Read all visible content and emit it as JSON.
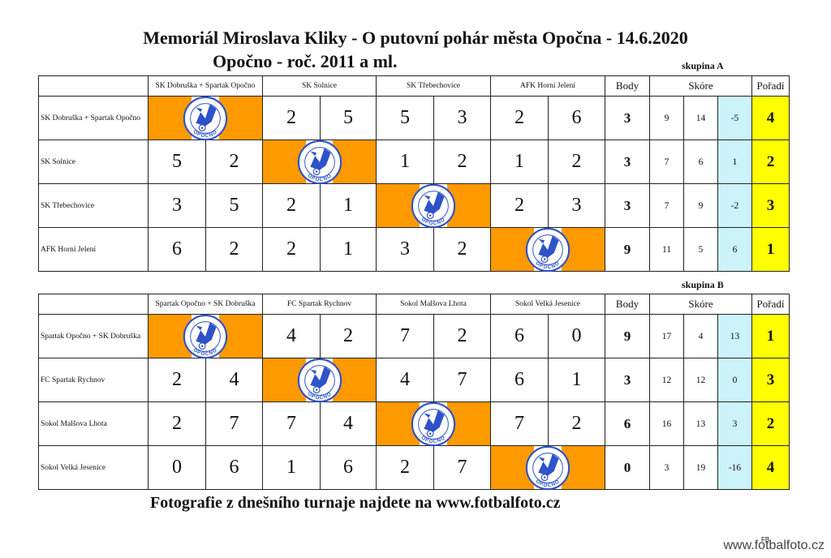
{
  "title": "Memoriál Miroslava Kliky - O putovní pohár města Opočna - 14.6.2020",
  "subtitle": "Opočno - roč. 2011 a ml.",
  "footer": "Fotografie z dnešního turnaje najdete na www.fotbalfoto.cz",
  "watermark": "www.fotbalfoto.cz",
  "tiny_mark": "FB",
  "logo": {
    "icon": "opocno-club-crest-icon",
    "text": "OPOČNO",
    "color": "#2e52c8"
  },
  "colors": {
    "self_cell": "#ff9900",
    "diff": "#ccf2fa",
    "rank": "#ffff00"
  },
  "headers": {
    "body": "Body",
    "skore": "Skóre",
    "poradi": "Pořadí"
  },
  "groups": [
    {
      "label": "skupina A",
      "teams": [
        "SK Dobruška + Spartak Opočno",
        "SK Solnice",
        "SK Třebechovice",
        "AFK Horní Jelení"
      ],
      "rows": [
        {
          "team": "SK Dobruška + Spartak Opočno",
          "results": [
            null,
            [
              "2",
              "5"
            ],
            [
              "5",
              "3"
            ],
            [
              "2",
              "6"
            ]
          ],
          "points": "3",
          "goals_for": "9",
          "goals_against": "14",
          "diff": "-5",
          "rank": "4"
        },
        {
          "team": "SK Solnice",
          "results": [
            [
              "5",
              "2"
            ],
            null,
            [
              "1",
              "2"
            ],
            [
              "1",
              "2"
            ]
          ],
          "points": "3",
          "goals_for": "7",
          "goals_against": "6",
          "diff": "1",
          "rank": "2"
        },
        {
          "team": "SK Třebechovice",
          "results": [
            [
              "3",
              "5"
            ],
            [
              "2",
              "1"
            ],
            null,
            [
              "2",
              "3"
            ]
          ],
          "points": "3",
          "goals_for": "7",
          "goals_against": "9",
          "diff": "-2",
          "rank": "3"
        },
        {
          "team": "AFK Horní Jelení",
          "results": [
            [
              "6",
              "2"
            ],
            [
              "2",
              "1"
            ],
            [
              "3",
              "2"
            ],
            null
          ],
          "points": "9",
          "goals_for": "11",
          "goals_against": "5",
          "diff": "6",
          "rank": "1"
        }
      ]
    },
    {
      "label": "skupina B",
      "teams": [
        "Spartak Opočno + SK Dobruška",
        "FC Spartak Rychnov",
        "Sokol Malšova Lhota",
        "Sokol Velká Jesenice"
      ],
      "rows": [
        {
          "team": "Spartak Opočno + SK Dobruška",
          "results": [
            null,
            [
              "4",
              "2"
            ],
            [
              "7",
              "2"
            ],
            [
              "6",
              "0"
            ]
          ],
          "points": "9",
          "goals_for": "17",
          "goals_against": "4",
          "diff": "13",
          "rank": "1"
        },
        {
          "team": "FC Spartak Rychnov",
          "results": [
            [
              "2",
              "4"
            ],
            null,
            [
              "4",
              "7"
            ],
            [
              "6",
              "1"
            ]
          ],
          "points": "3",
          "goals_for": "12",
          "goals_against": "12",
          "diff": "0",
          "rank": "3"
        },
        {
          "team": "Sokol Malšova Lhota",
          "results": [
            [
              "2",
              "7"
            ],
            [
              "7",
              "4"
            ],
            null,
            [
              "7",
              "2"
            ]
          ],
          "points": "6",
          "goals_for": "16",
          "goals_against": "13",
          "diff": "3",
          "rank": "2"
        },
        {
          "team": "Sokol Velká Jesenice",
          "results": [
            [
              "0",
              "6"
            ],
            [
              "1",
              "6"
            ],
            [
              "2",
              "7"
            ],
            null
          ],
          "points": "0",
          "goals_for": "3",
          "goals_against": "19",
          "diff": "-16",
          "rank": "4"
        }
      ]
    }
  ]
}
